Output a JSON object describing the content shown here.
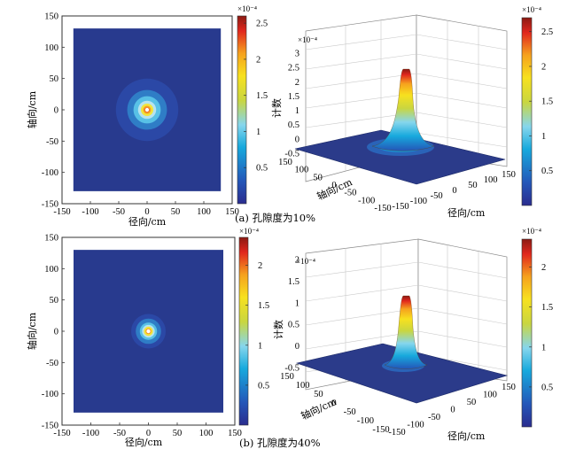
{
  "colors": {
    "map": [
      "#2a2c8e",
      "#2456b8",
      "#17a9dd",
      "#86d6ed",
      "#c9d640",
      "#f7e11f",
      "#f6a21e",
      "#e1271d",
      "#8b1a13"
    ],
    "background": "#283a8e"
  },
  "chart_data": [
    {
      "id": "a-map",
      "type": "heatmap",
      "panel": "a",
      "view": "2d",
      "xlabel": "径向/cm",
      "ylabel": "轴向/cm",
      "xticks": [
        "-150",
        "-100",
        "-50",
        "0",
        "50",
        "100",
        "150"
      ],
      "yticks": [
        "150",
        "100",
        "50",
        "0",
        "-50",
        "-100",
        "-150"
      ],
      "xlim": [
        -150,
        150
      ],
      "ylim": [
        -150,
        150
      ],
      "domain_x": [
        -130,
        130
      ],
      "domain_y": [
        -130,
        130
      ],
      "peak_center": [
        0,
        0
      ],
      "ring_radii_cm": [
        55,
        35,
        24,
        16,
        11,
        7,
        4
      ],
      "colorbar": {
        "ticks": [
          "2.5",
          "2",
          "1.5",
          "1",
          "0.5"
        ],
        "values": [
          2.5,
          2,
          1.5,
          1,
          0.5
        ],
        "range": [
          0,
          2.6
        ],
        "exponent": "×10⁻⁴"
      }
    },
    {
      "id": "a-surface",
      "type": "surface",
      "panel": "a",
      "view": "3d",
      "zlabel": "计数",
      "xlabel": "径向/cm",
      "ylabel": "轴向/cm",
      "zticks": [
        "3",
        "2.5",
        "2",
        "1.5",
        "1",
        "0.5",
        "0",
        "-0.5"
      ],
      "zlim": [
        -0.5,
        3
      ],
      "xticks": [
        "-150",
        "-100",
        "-50",
        "0",
        "50",
        "100",
        "150"
      ],
      "yticks": [
        "150",
        "100",
        "50",
        "0",
        "-50",
        "-100",
        "-150"
      ],
      "peak_value": 2.5,
      "z_exponent": "×10⁻⁴",
      "colorbar": {
        "ticks": [
          "2.5",
          "2",
          "1.5",
          "1",
          "0.5"
        ],
        "values": [
          2.5,
          2,
          1.5,
          1,
          0.5
        ],
        "range": [
          0,
          2.7
        ],
        "exponent": "×10⁻⁴"
      }
    },
    {
      "id": "b-map",
      "type": "heatmap",
      "panel": "b",
      "view": "2d",
      "xlabel": "径向/cm",
      "ylabel": "轴向/cm",
      "xticks": [
        "-150",
        "-100",
        "-50",
        "0",
        "50",
        "100",
        "150"
      ],
      "yticks": [
        "150",
        "100",
        "50",
        "0",
        "-50",
        "-100",
        "-150"
      ],
      "xlim": [
        -150,
        150
      ],
      "ylim": [
        -150,
        150
      ],
      "domain_x": [
        -130,
        130
      ],
      "domain_y": [
        -130,
        130
      ],
      "peak_center": [
        0,
        0
      ],
      "ring_radii_cm": [
        30,
        22,
        15,
        11,
        8,
        5
      ],
      "colorbar": {
        "ticks": [
          "2",
          "1.5",
          "1",
          "0.5"
        ],
        "values": [
          2,
          1.5,
          1,
          0.5
        ],
        "range": [
          0,
          2.35
        ],
        "exponent": "×10⁻⁴"
      }
    },
    {
      "id": "b-surface",
      "type": "surface",
      "panel": "b",
      "view": "3d",
      "zlabel": "计数",
      "xlabel": "径向/cm",
      "ylabel": "轴向/cm",
      "zticks": [
        "2",
        "1.5",
        "1",
        "0.5",
        "0",
        "-0.5"
      ],
      "zlim": [
        -0.5,
        2
      ],
      "xticks": [
        "-150",
        "-100",
        "-50",
        "0",
        "50",
        "100",
        "150"
      ],
      "yticks": [
        "150",
        "100",
        "50",
        "0",
        "-50",
        "-100",
        "-150"
      ],
      "peak_value": 2.2,
      "z_exponent": "×10⁻⁴",
      "colorbar": {
        "ticks": [
          "2",
          "1.5",
          "1",
          "0.5"
        ],
        "values": [
          2,
          1.5,
          1,
          0.5
        ],
        "range": [
          0,
          2.35
        ],
        "exponent": "×10⁻⁴"
      }
    }
  ],
  "captions": {
    "a": "(a) 孔隙度为10%",
    "b": "(b) 孔隙度为40%"
  }
}
